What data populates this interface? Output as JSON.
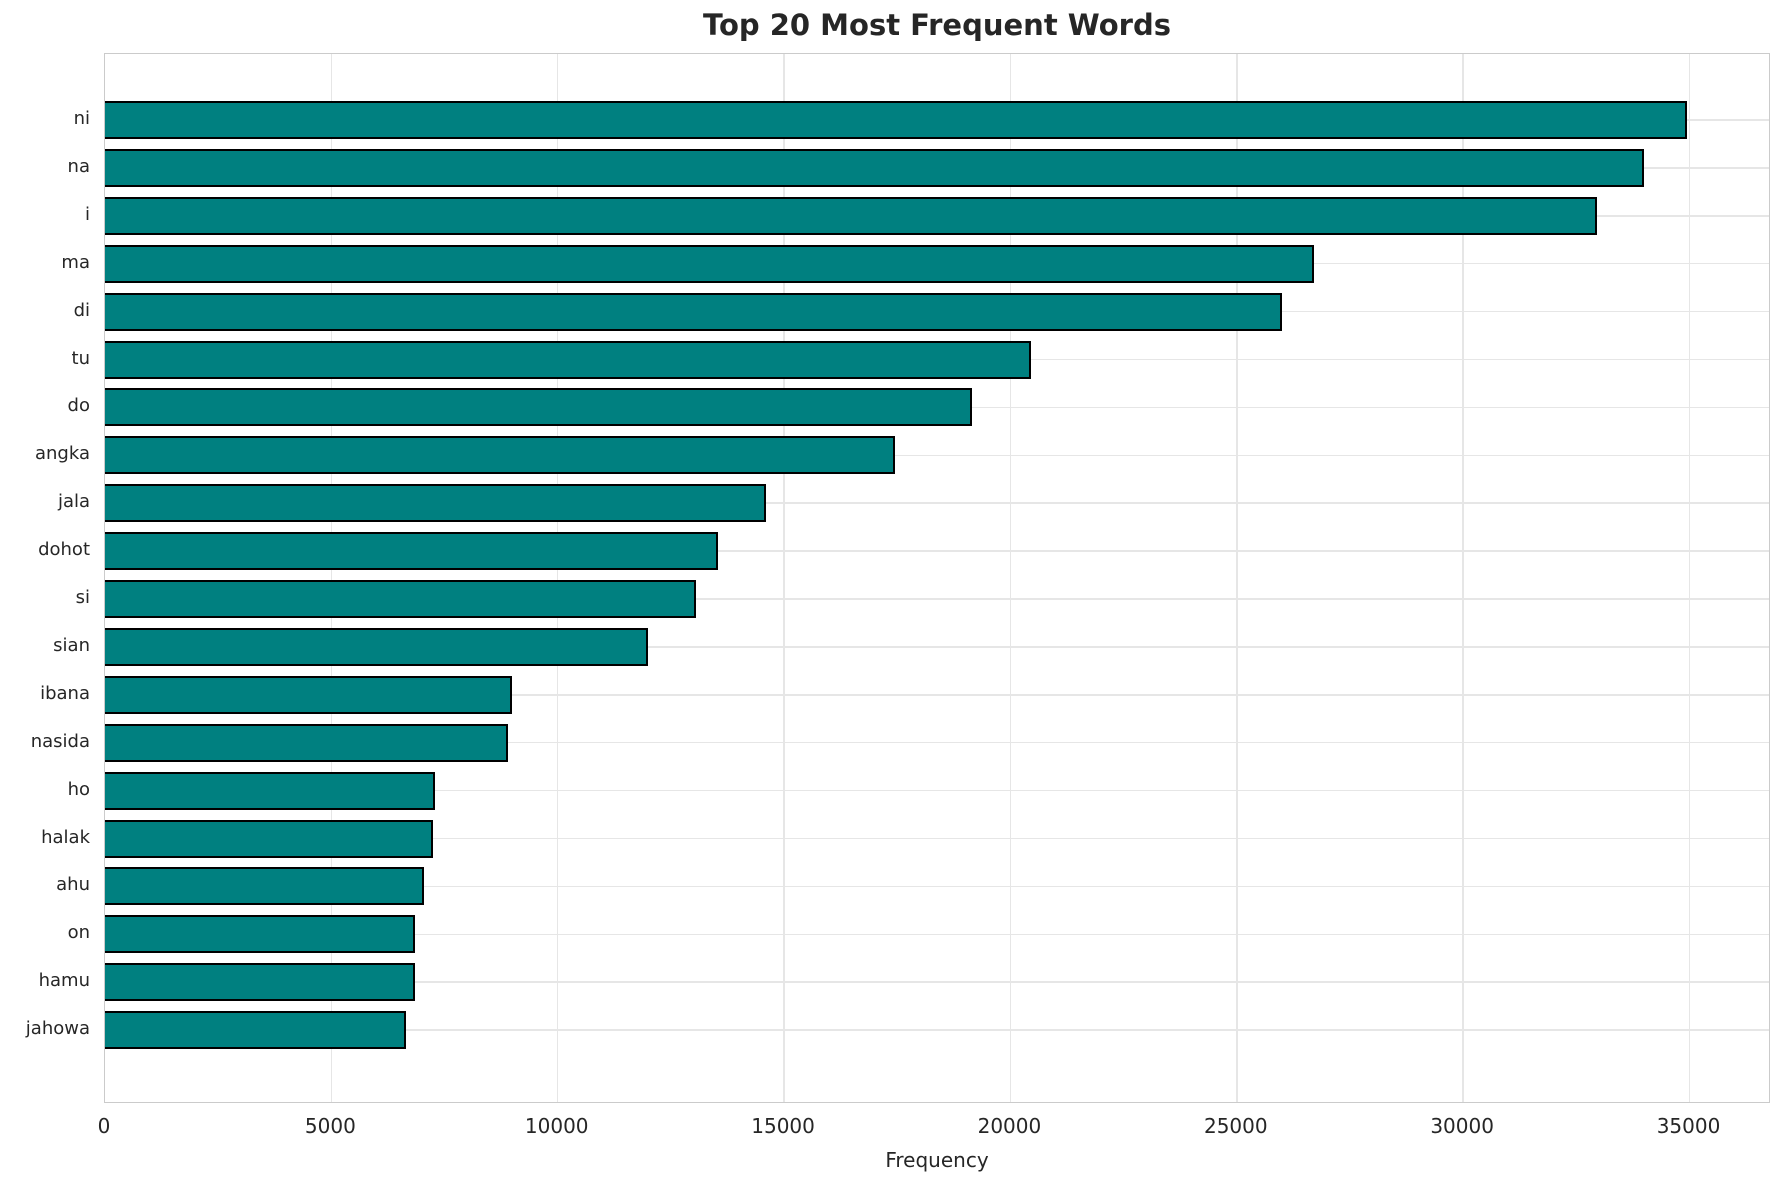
{
  "title": "Top 20 Most Frequent Words",
  "xlabel": "Frequency",
  "colors": {
    "bar_fill": "#008080",
    "bar_edge": "#000000",
    "grid": "#e6e6e6",
    "spine": "#cbcbcb",
    "text": "#262626"
  },
  "chart_data": {
    "type": "bar",
    "orientation": "horizontal",
    "title": "Top 20 Most Frequent Words",
    "xlabel": "Frequency",
    "ylabel": "",
    "grid": true,
    "legend": false,
    "xlim": [
      0,
      36800
    ],
    "xticks": [
      0,
      5000,
      10000,
      15000,
      20000,
      25000,
      30000,
      35000
    ],
    "categories": [
      "ni",
      "na",
      "i",
      "ma",
      "di",
      "tu",
      "do",
      "angka",
      "jala",
      "dohot",
      "si",
      "sian",
      "ibana",
      "nasida",
      "ho",
      "halak",
      "ahu",
      "on",
      "hamu",
      "jahowa"
    ],
    "values": [
      34950,
      34000,
      32950,
      26700,
      26000,
      20450,
      19150,
      17450,
      14600,
      13550,
      13050,
      12000,
      9000,
      8900,
      7300,
      7250,
      7050,
      6850,
      6840,
      6650
    ]
  }
}
